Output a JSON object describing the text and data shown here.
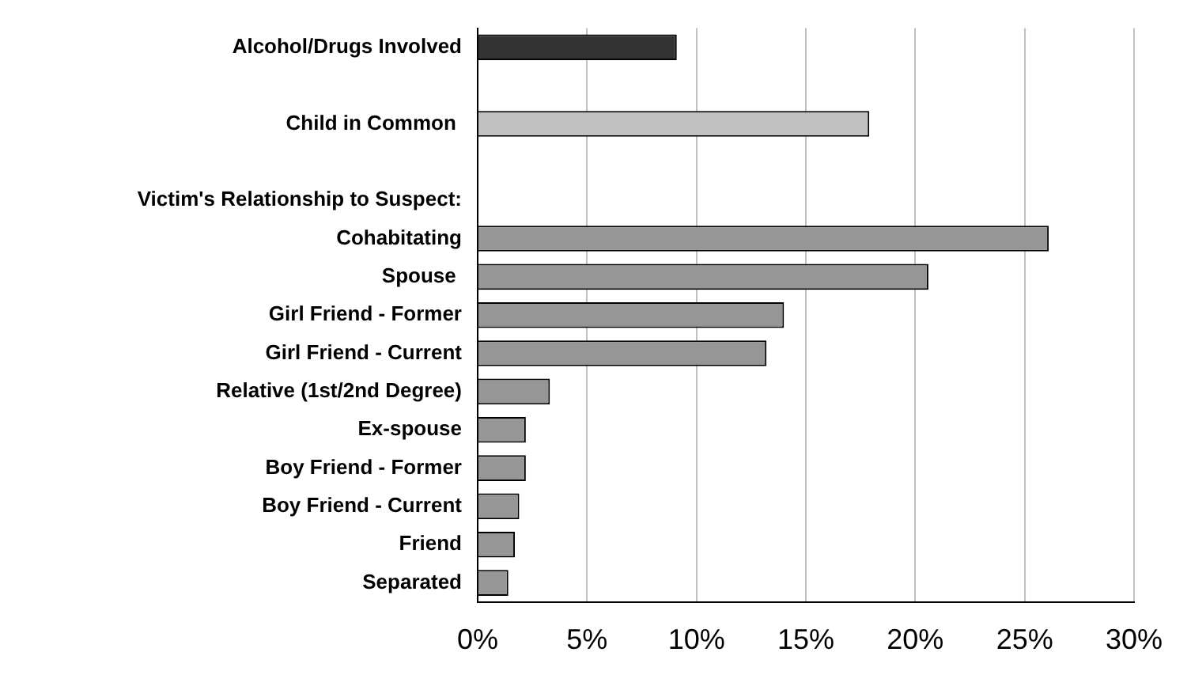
{
  "chart_data": {
    "type": "bar",
    "orientation": "horizontal",
    "categories": [
      "Alcohol/Drugs Involved",
      null,
      "Child in Common ",
      null,
      null,
      "Cohabitating",
      "Spouse ",
      "Girl Friend - Former",
      "Girl Friend - Current",
      "Relative (1st/2nd Degree)",
      "Ex-spouse",
      "Boy Friend - Former",
      "Boy Friend - Current",
      "Friend",
      "Separated"
    ],
    "values": [
      9.1,
      null,
      17.9,
      null,
      null,
      26.1,
      20.6,
      14.0,
      13.2,
      3.3,
      2.2,
      2.2,
      1.9,
      1.7,
      1.4
    ],
    "colors": [
      "#333333",
      null,
      "#c0c0c0",
      null,
      null,
      "#969696",
      "#969696",
      "#969696",
      "#969696",
      "#969696",
      "#969696",
      "#969696",
      "#969696",
      "#969696",
      "#969696"
    ],
    "xlim": [
      0,
      30
    ],
    "xticks": [
      {
        "value": 0,
        "label": "0%"
      },
      {
        "value": 5,
        "label": "5%"
      },
      {
        "value": 10,
        "label": "10%"
      },
      {
        "value": 15,
        "label": "15%"
      },
      {
        "value": 20,
        "label": "20%"
      },
      {
        "value": 25,
        "label": "25%"
      },
      {
        "value": 30,
        "label": "30%"
      }
    ],
    "grid": "x",
    "legend": false,
    "annotations": [
      "Victim's Relationship to Suspect:"
    ]
  }
}
